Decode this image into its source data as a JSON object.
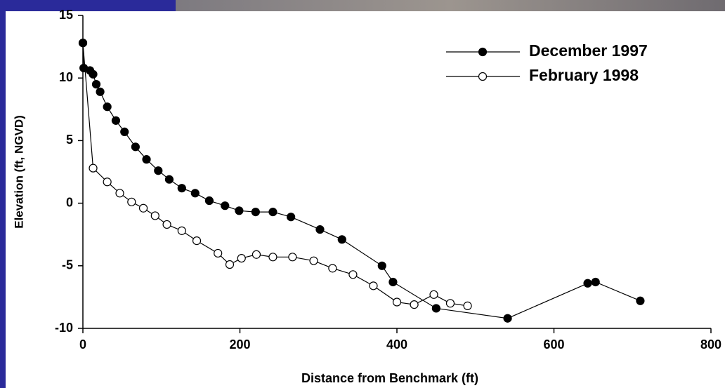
{
  "chart_data": {
    "type": "line",
    "xlabel": "Distance from Benchmark (ft)",
    "ylabel": "Elevation (ft, NGVD)",
    "xlim": [
      0,
      800
    ],
    "xticks": [
      0,
      200,
      400,
      600,
      800
    ],
    "ylim": [
      -10,
      15
    ],
    "yticks": [
      -10,
      -5,
      0,
      5,
      10,
      15
    ],
    "legend": "upper right",
    "series": [
      {
        "name": "December 1997",
        "color": "#000000",
        "marker": "filled",
        "x": [
          0,
          1,
          9,
          13,
          17,
          22,
          31,
          42,
          53,
          67,
          81,
          96,
          110,
          126,
          143,
          161,
          181,
          199,
          220,
          242,
          265,
          302,
          330,
          381,
          395,
          450,
          541,
          643,
          653,
          710
        ],
        "values": [
          12.8,
          10.8,
          10.6,
          10.3,
          9.5,
          8.9,
          7.7,
          6.6,
          5.7,
          4.5,
          3.5,
          2.6,
          1.9,
          1.2,
          0.8,
          0.2,
          -0.2,
          -0.6,
          -0.7,
          -0.7,
          -1.1,
          -2.1,
          -2.9,
          -5.0,
          -6.3,
          -8.4,
          -9.2,
          -6.4,
          -6.3,
          -7.8
        ]
      },
      {
        "name": "February 1998",
        "color": "#000000",
        "marker": "open",
        "x": [
          0,
          13,
          31,
          47,
          62,
          77,
          92,
          107,
          126,
          145,
          172,
          187,
          202,
          221,
          242,
          267,
          294,
          318,
          344,
          370,
          400,
          422,
          447,
          468,
          490
        ],
        "values": [
          12.8,
          2.8,
          1.7,
          0.8,
          0.1,
          -0.4,
          -1.0,
          -1.7,
          -2.2,
          -3.0,
          -4.0,
          -4.9,
          -4.4,
          -4.1,
          -4.3,
          -4.3,
          -4.6,
          -5.2,
          -5.7,
          -6.6,
          -7.9,
          -8.1,
          -7.3,
          -8.0,
          -8.2
        ]
      }
    ]
  }
}
